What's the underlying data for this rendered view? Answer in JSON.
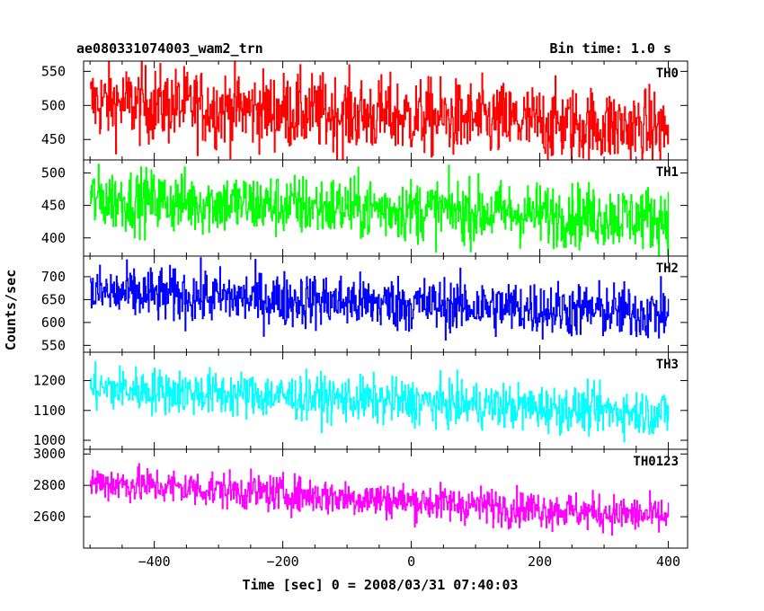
{
  "header": {
    "title": "ae080331074003_wam2_trn",
    "bin_time": "Bin time: 1.0 s"
  },
  "axes": {
    "xlabel": "Time [sec] 0 = 2008/03/31 07:40:03",
    "ylabel": "Counts/sec"
  },
  "chart_data": {
    "type": "line",
    "title": "ae080331074003_wam2_trn",
    "xlabel": "Time [sec] 0 = 2008/03/31 07:40:03",
    "ylabel": "Counts/sec",
    "xlim": [
      -510,
      430
    ],
    "x_ticks": [
      -400,
      -200,
      0,
      200,
      400
    ],
    "x_tick_labels": [
      "−400",
      "−200",
      "0",
      "200",
      "400"
    ],
    "x_data_range": [
      -500,
      400
    ],
    "bin_seconds": 1.0,
    "grid": false,
    "panels": [
      {
        "name": "TH0",
        "color": "#ff0000",
        "ylim": [
          420,
          565
        ],
        "y_ticks": [
          450,
          500,
          550
        ],
        "y_tick_labels": [
          "450",
          "500",
          "550"
        ],
        "mean_start": 505,
        "mean_end": 465,
        "noise": 28
      },
      {
        "name": "TH1",
        "color": "#00ff00",
        "ylim": [
          372,
          520
        ],
        "y_ticks": [
          400,
          450,
          500
        ],
        "y_tick_labels": [
          "400",
          "450",
          "500"
        ],
        "mean_start": 460,
        "mean_end": 430,
        "noise": 24
      },
      {
        "name": "TH2",
        "color": "#0000ff",
        "ylim": [
          535,
          745
        ],
        "y_ticks": [
          550,
          600,
          650,
          700
        ],
        "y_tick_labels": [
          "550",
          "600",
          "650",
          "700"
        ],
        "mean_start": 665,
        "mean_end": 620,
        "noise": 30
      },
      {
        "name": "TH3",
        "color": "#00ffff",
        "ylim": [
          970,
          1295
        ],
        "y_ticks": [
          1000,
          1100,
          1200
        ],
        "y_tick_labels": [
          "1000",
          "1100",
          "1200"
        ],
        "mean_start": 1175,
        "mean_end": 1090,
        "noise": 38
      },
      {
        "name": "TH0123",
        "color": "#ff00ff",
        "ylim": [
          2400,
          3030
        ],
        "y_ticks": [
          2600,
          2800,
          3000
        ],
        "y_tick_labels": [
          "2600",
          "2800",
          "3000"
        ],
        "mean_start": 2820,
        "mean_end": 2600,
        "noise": 58
      }
    ]
  }
}
